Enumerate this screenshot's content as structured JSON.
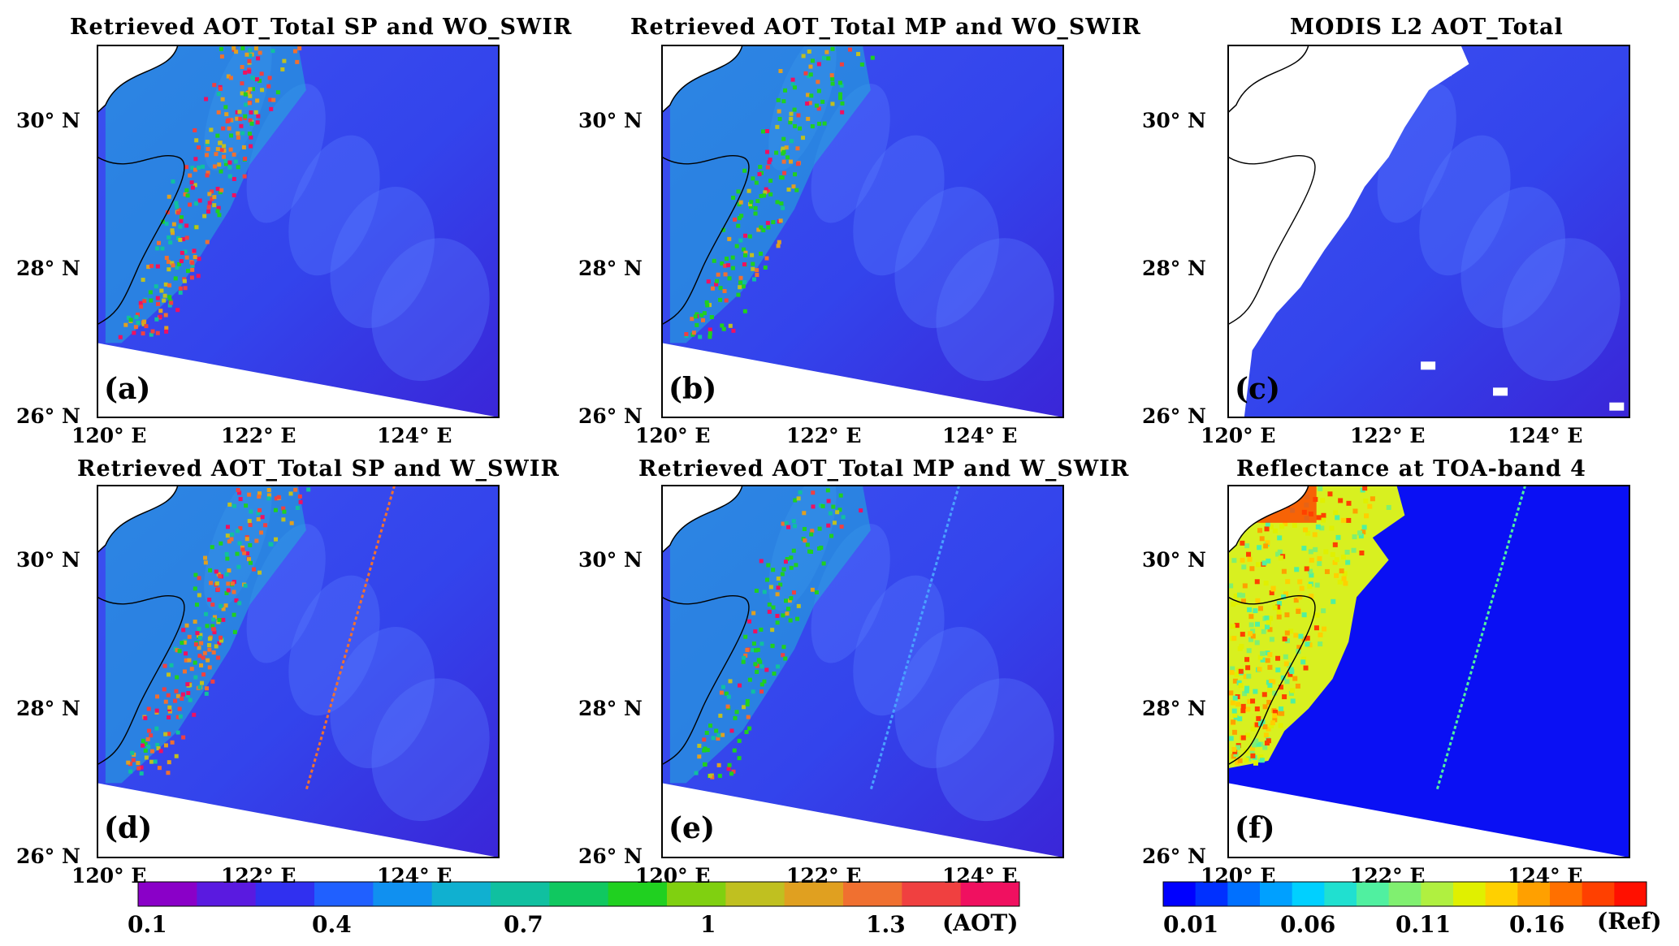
{
  "figure": {
    "panels": [
      {
        "id": "a",
        "title": "Retrieved AOT_Total SP and WO_SWIR",
        "label": "(a)",
        "kind": "aot",
        "intensity": 1.0,
        "stripe": false,
        "modis": false
      },
      {
        "id": "b",
        "title": "Retrieved AOT_Total MP and WO_SWIR",
        "label": "(b)",
        "kind": "aot",
        "intensity": 0.75,
        "stripe": false,
        "modis": false
      },
      {
        "id": "c",
        "title": "MODIS L2 AOT_Total",
        "label": "(c)",
        "kind": "aot",
        "intensity": 0.3,
        "stripe": false,
        "modis": true
      },
      {
        "id": "d",
        "title": "Retrieved AOT_Total SP and W_SWIR",
        "label": "(d)",
        "kind": "aot",
        "intensity": 0.9,
        "stripe": true,
        "modis": false
      },
      {
        "id": "e",
        "title": "Retrieved AOT_Total MP and W_SWIR",
        "label": "(e)",
        "kind": "aot",
        "intensity": 0.6,
        "stripe": true,
        "modis": false
      },
      {
        "id": "f",
        "title": "Reflectance at TOA-band 4",
        "label": "(f)",
        "kind": "ref",
        "intensity": 1.0,
        "stripe": true,
        "modis": false
      }
    ],
    "lat_ticks": [
      "30° N",
      "28° N",
      "26° N"
    ],
    "lon_ticks": [
      "120° E",
      "122° E",
      "124° E"
    ],
    "aot_colorbar": {
      "labels": [
        "0.1",
        "0.4",
        "0.7",
        "1",
        "1.3"
      ],
      "unit": "(AOT)",
      "colors": [
        "#8a00c8",
        "#5a1ae0",
        "#3030f0",
        "#2060ff",
        "#1090f0",
        "#10b0d0",
        "#10c0a0",
        "#10c860",
        "#20d020",
        "#80d010",
        "#c0c020",
        "#e0a020",
        "#f07030",
        "#f04040",
        "#f01060"
      ]
    },
    "ref_colorbar": {
      "labels": [
        "0.01",
        "0.06",
        "0.11",
        "0.16"
      ],
      "unit": "(Ref)",
      "colors": [
        "#0000ff",
        "#0030ff",
        "#0070ff",
        "#00a0ff",
        "#00d0ff",
        "#20e0d0",
        "#50f0a0",
        "#80f070",
        "#b0f040",
        "#e0f000",
        "#ffd000",
        "#ffa000",
        "#ff7000",
        "#ff4000",
        "#ff1000"
      ]
    },
    "colors": {
      "ocean_deep": "#3a26d8",
      "ocean_mid": "#3c50f0",
      "land": "#ffffff",
      "ref_ocean": "#0a10f4"
    }
  }
}
